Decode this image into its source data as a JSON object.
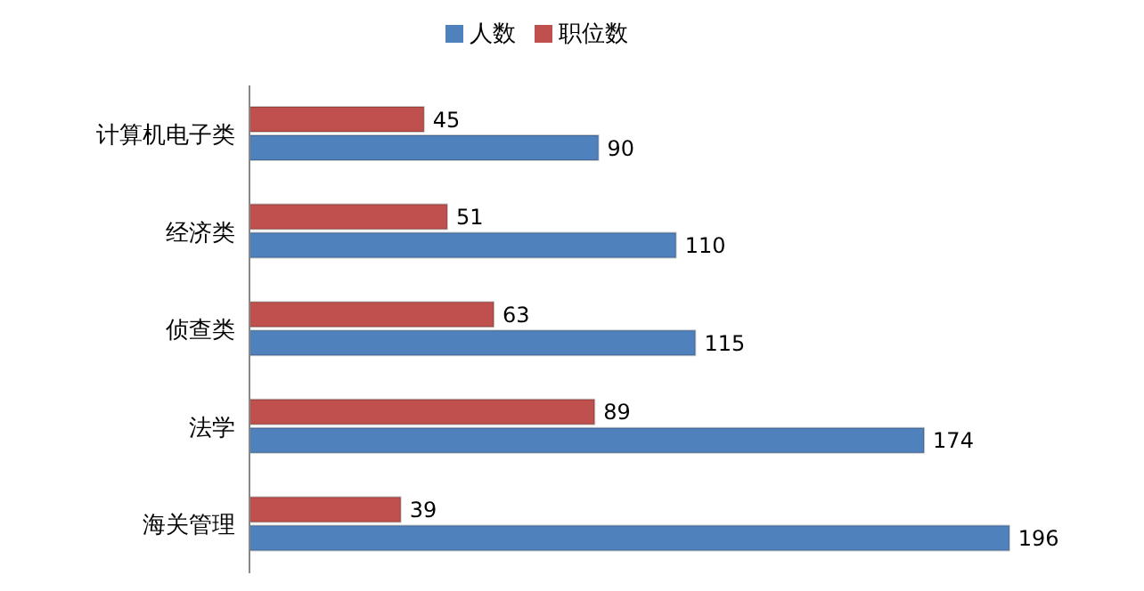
{
  "chart_data": {
    "type": "bar",
    "orientation": "horizontal",
    "categories": [
      "计算机电子类",
      "经济类",
      "侦查类",
      "法学",
      "海关管理"
    ],
    "series": [
      {
        "name": "职位数",
        "color": "#c0504d",
        "values": [
          45,
          51,
          63,
          89,
          39
        ]
      },
      {
        "name": "人数",
        "color": "#4f81bd",
        "values": [
          90,
          110,
          115,
          174,
          196
        ]
      }
    ],
    "data_labels": true,
    "legend": "top",
    "grid": false
  }
}
